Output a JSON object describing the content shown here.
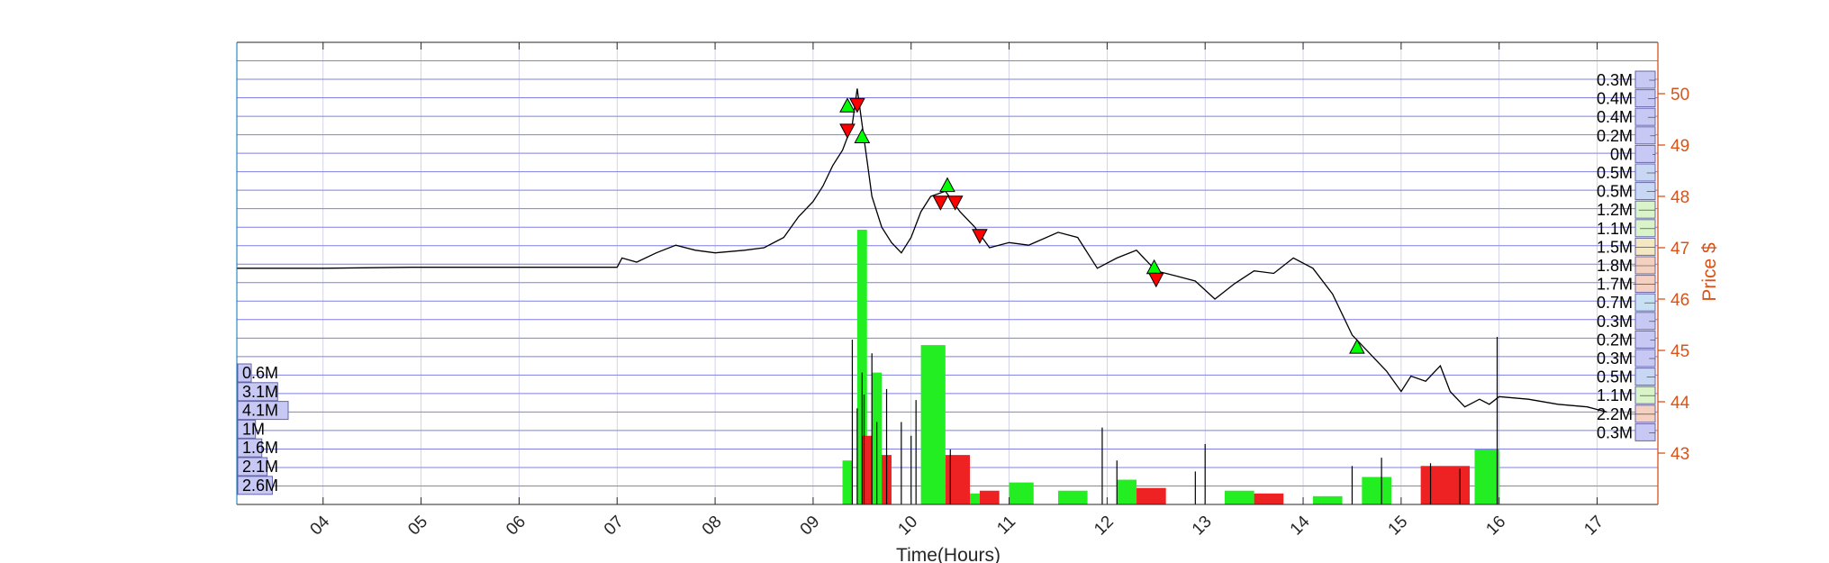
{
  "chart_data": {
    "type": "line",
    "title": "",
    "xlabel": "Time(Hours)",
    "ylabel": "Price $",
    "x_ticks": [
      "04",
      "05",
      "06",
      "07",
      "08",
      "09",
      "10",
      "11",
      "12",
      "13",
      "14",
      "15",
      "16",
      "17"
    ],
    "xlim": [
      3.12,
      17.62
    ],
    "y_ticks": [
      43,
      44,
      45,
      46,
      47,
      48,
      49,
      50
    ],
    "ylim": [
      42.0,
      51.0
    ],
    "grid": true,
    "colors": {
      "price_axis": "#d95319",
      "buy_marker": "#00ff00",
      "sell_marker": "#ff0000",
      "buy_volume": "#22ee22",
      "sell_volume": "#ee2222",
      "profile_fill": "#c8c8f4",
      "profile_edge": "#6666aa",
      "grid": "#5555dd",
      "price_line": "#000000"
    },
    "price_series": [
      [
        3.12,
        46.6
      ],
      [
        4.0,
        46.6
      ],
      [
        4.9,
        46.62
      ],
      [
        6.0,
        46.62
      ],
      [
        7.0,
        46.62
      ],
      [
        7.05,
        46.8
      ],
      [
        7.2,
        46.72
      ],
      [
        7.4,
        46.9
      ],
      [
        7.6,
        47.05
      ],
      [
        7.8,
        46.95
      ],
      [
        8.0,
        46.9
      ],
      [
        8.3,
        46.95
      ],
      [
        8.5,
        47.0
      ],
      [
        8.7,
        47.2
      ],
      [
        8.85,
        47.6
      ],
      [
        9.0,
        47.9
      ],
      [
        9.1,
        48.2
      ],
      [
        9.2,
        48.6
      ],
      [
        9.3,
        48.9
      ],
      [
        9.4,
        49.4
      ],
      [
        9.45,
        50.1
      ],
      [
        9.5,
        49.4
      ],
      [
        9.55,
        48.7
      ],
      [
        9.6,
        48.0
      ],
      [
        9.7,
        47.4
      ],
      [
        9.8,
        47.1
      ],
      [
        9.9,
        46.9
      ],
      [
        10.0,
        47.2
      ],
      [
        10.1,
        47.7
      ],
      [
        10.2,
        48.0
      ],
      [
        10.35,
        48.1
      ],
      [
        10.5,
        47.7
      ],
      [
        10.65,
        47.4
      ],
      [
        10.8,
        47.0
      ],
      [
        11.0,
        47.1
      ],
      [
        11.2,
        47.05
      ],
      [
        11.5,
        47.3
      ],
      [
        11.7,
        47.2
      ],
      [
        11.9,
        46.6
      ],
      [
        12.1,
        46.8
      ],
      [
        12.3,
        46.95
      ],
      [
        12.5,
        46.55
      ],
      [
        12.7,
        46.45
      ],
      [
        12.9,
        46.35
      ],
      [
        13.1,
        46.0
      ],
      [
        13.3,
        46.3
      ],
      [
        13.5,
        46.55
      ],
      [
        13.7,
        46.5
      ],
      [
        13.9,
        46.8
      ],
      [
        14.1,
        46.6
      ],
      [
        14.3,
        46.1
      ],
      [
        14.5,
        45.3
      ],
      [
        14.7,
        44.9
      ],
      [
        14.85,
        44.6
      ],
      [
        15.0,
        44.2
      ],
      [
        15.1,
        44.5
      ],
      [
        15.25,
        44.4
      ],
      [
        15.4,
        44.7
      ],
      [
        15.5,
        44.2
      ],
      [
        15.65,
        43.9
      ],
      [
        15.8,
        44.05
      ],
      [
        15.9,
        43.95
      ],
      [
        16.0,
        44.1
      ],
      [
        16.3,
        44.05
      ],
      [
        16.6,
        43.95
      ],
      [
        16.9,
        43.9
      ],
      [
        17.1,
        43.8
      ]
    ],
    "buy_markers": [
      [
        9.35,
        49.75
      ],
      [
        9.5,
        49.15
      ],
      [
        10.37,
        48.2
      ],
      [
        12.48,
        46.6
      ],
      [
        14.55,
        45.05
      ]
    ],
    "sell_markers": [
      [
        9.35,
        49.3
      ],
      [
        9.45,
        49.8
      ],
      [
        10.3,
        47.9
      ],
      [
        10.45,
        47.9
      ],
      [
        10.7,
        47.25
      ],
      [
        12.5,
        46.4
      ]
    ],
    "volume_buy_bins": [
      [
        9.3,
        9.4,
        0.16
      ],
      [
        9.45,
        9.55,
        1.0
      ],
      [
        9.6,
        9.7,
        0.48
      ],
      [
        10.1,
        10.35,
        0.58
      ],
      [
        10.5,
        10.7,
        0.04
      ],
      [
        11.0,
        11.25,
        0.08
      ],
      [
        11.5,
        11.8,
        0.05
      ],
      [
        12.1,
        12.3,
        0.09
      ],
      [
        13.2,
        13.5,
        0.05
      ],
      [
        14.1,
        14.4,
        0.03
      ],
      [
        14.6,
        14.9,
        0.1
      ],
      [
        15.75,
        16.0,
        0.2
      ]
    ],
    "volume_sell_bins": [
      [
        9.5,
        9.6,
        0.25
      ],
      [
        9.7,
        9.8,
        0.18
      ],
      [
        10.35,
        10.6,
        0.18
      ],
      [
        10.7,
        10.9,
        0.05
      ],
      [
        12.3,
        12.6,
        0.06
      ],
      [
        13.5,
        13.8,
        0.04
      ],
      [
        15.2,
        15.7,
        0.14
      ]
    ],
    "volume_spikes": [
      [
        9.4,
        0.6
      ],
      [
        9.45,
        0.35
      ],
      [
        9.5,
        0.48
      ],
      [
        9.52,
        0.4
      ],
      [
        9.6,
        0.55
      ],
      [
        9.65,
        0.3
      ],
      [
        9.75,
        0.42
      ],
      [
        9.9,
        0.3
      ],
      [
        10.0,
        0.25
      ],
      [
        10.05,
        0.38
      ],
      [
        10.4,
        0.2
      ],
      [
        11.95,
        0.28
      ],
      [
        12.1,
        0.16
      ],
      [
        12.9,
        0.12
      ],
      [
        13.0,
        0.22
      ],
      [
        14.5,
        0.14
      ],
      [
        14.8,
        0.17
      ],
      [
        15.3,
        0.15
      ],
      [
        15.6,
        0.13
      ],
      [
        15.98,
        0.61
      ]
    ],
    "right_volume_profile": {
      "labels": [
        "0.3M",
        "0.4M",
        "0.4M",
        "0.2M",
        "0M",
        "0.5M",
        "0.5M",
        "1.2M",
        "1.1M",
        "1.5M",
        "1.8M",
        "1.7M",
        "0.7M",
        "0.3M",
        "0.2M",
        "0.3M",
        "0.5M",
        "1.1M",
        "2.2M",
        "0.3M"
      ],
      "values": [
        0.3,
        0.4,
        0.4,
        0.2,
        0.0,
        0.5,
        0.5,
        1.2,
        1.1,
        1.5,
        1.8,
        1.7,
        0.7,
        0.3,
        0.2,
        0.3,
        0.5,
        1.1,
        2.2,
        0.3
      ],
      "colors": [
        "#c8c8f4",
        "#c8c8f4",
        "#c8c8f4",
        "#c8c8f4",
        "#c8c8f4",
        "#c8d8f4",
        "#c8d8f4",
        "#d8f4c8",
        "#d8f4c8",
        "#f4e8c0",
        "#f4d0c0",
        "#f4d0c0",
        "#c8e0f4",
        "#c8c8f4",
        "#c8c8f4",
        "#c8c8f4",
        "#c8d8f4",
        "#d8f4c8",
        "#f4d0c0",
        "#c8c8f4"
      ]
    },
    "left_volume_profile": {
      "labels": [
        "0.6M",
        "3.1M",
        "4.1M",
        "1M",
        "1.6M",
        "2.1M",
        "2.6M"
      ],
      "values": [
        0.6,
        3.1,
        4.1,
        1.0,
        1.6,
        2.1,
        2.6
      ]
    }
  }
}
